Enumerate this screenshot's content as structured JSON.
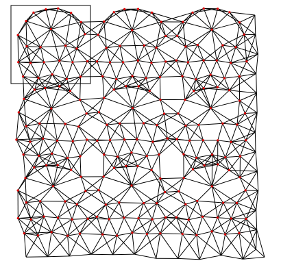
{
  "figure": {
    "kind": "periodic triangle-mesh tiling",
    "tiles": {
      "columns": 3,
      "rows": 3
    },
    "highlighted_tile": {
      "column": 0,
      "row": 0
    },
    "colors": {
      "background": "#ffffff",
      "edges": "#000000",
      "vertices": "#e00000",
      "frame": "#000000"
    }
  }
}
